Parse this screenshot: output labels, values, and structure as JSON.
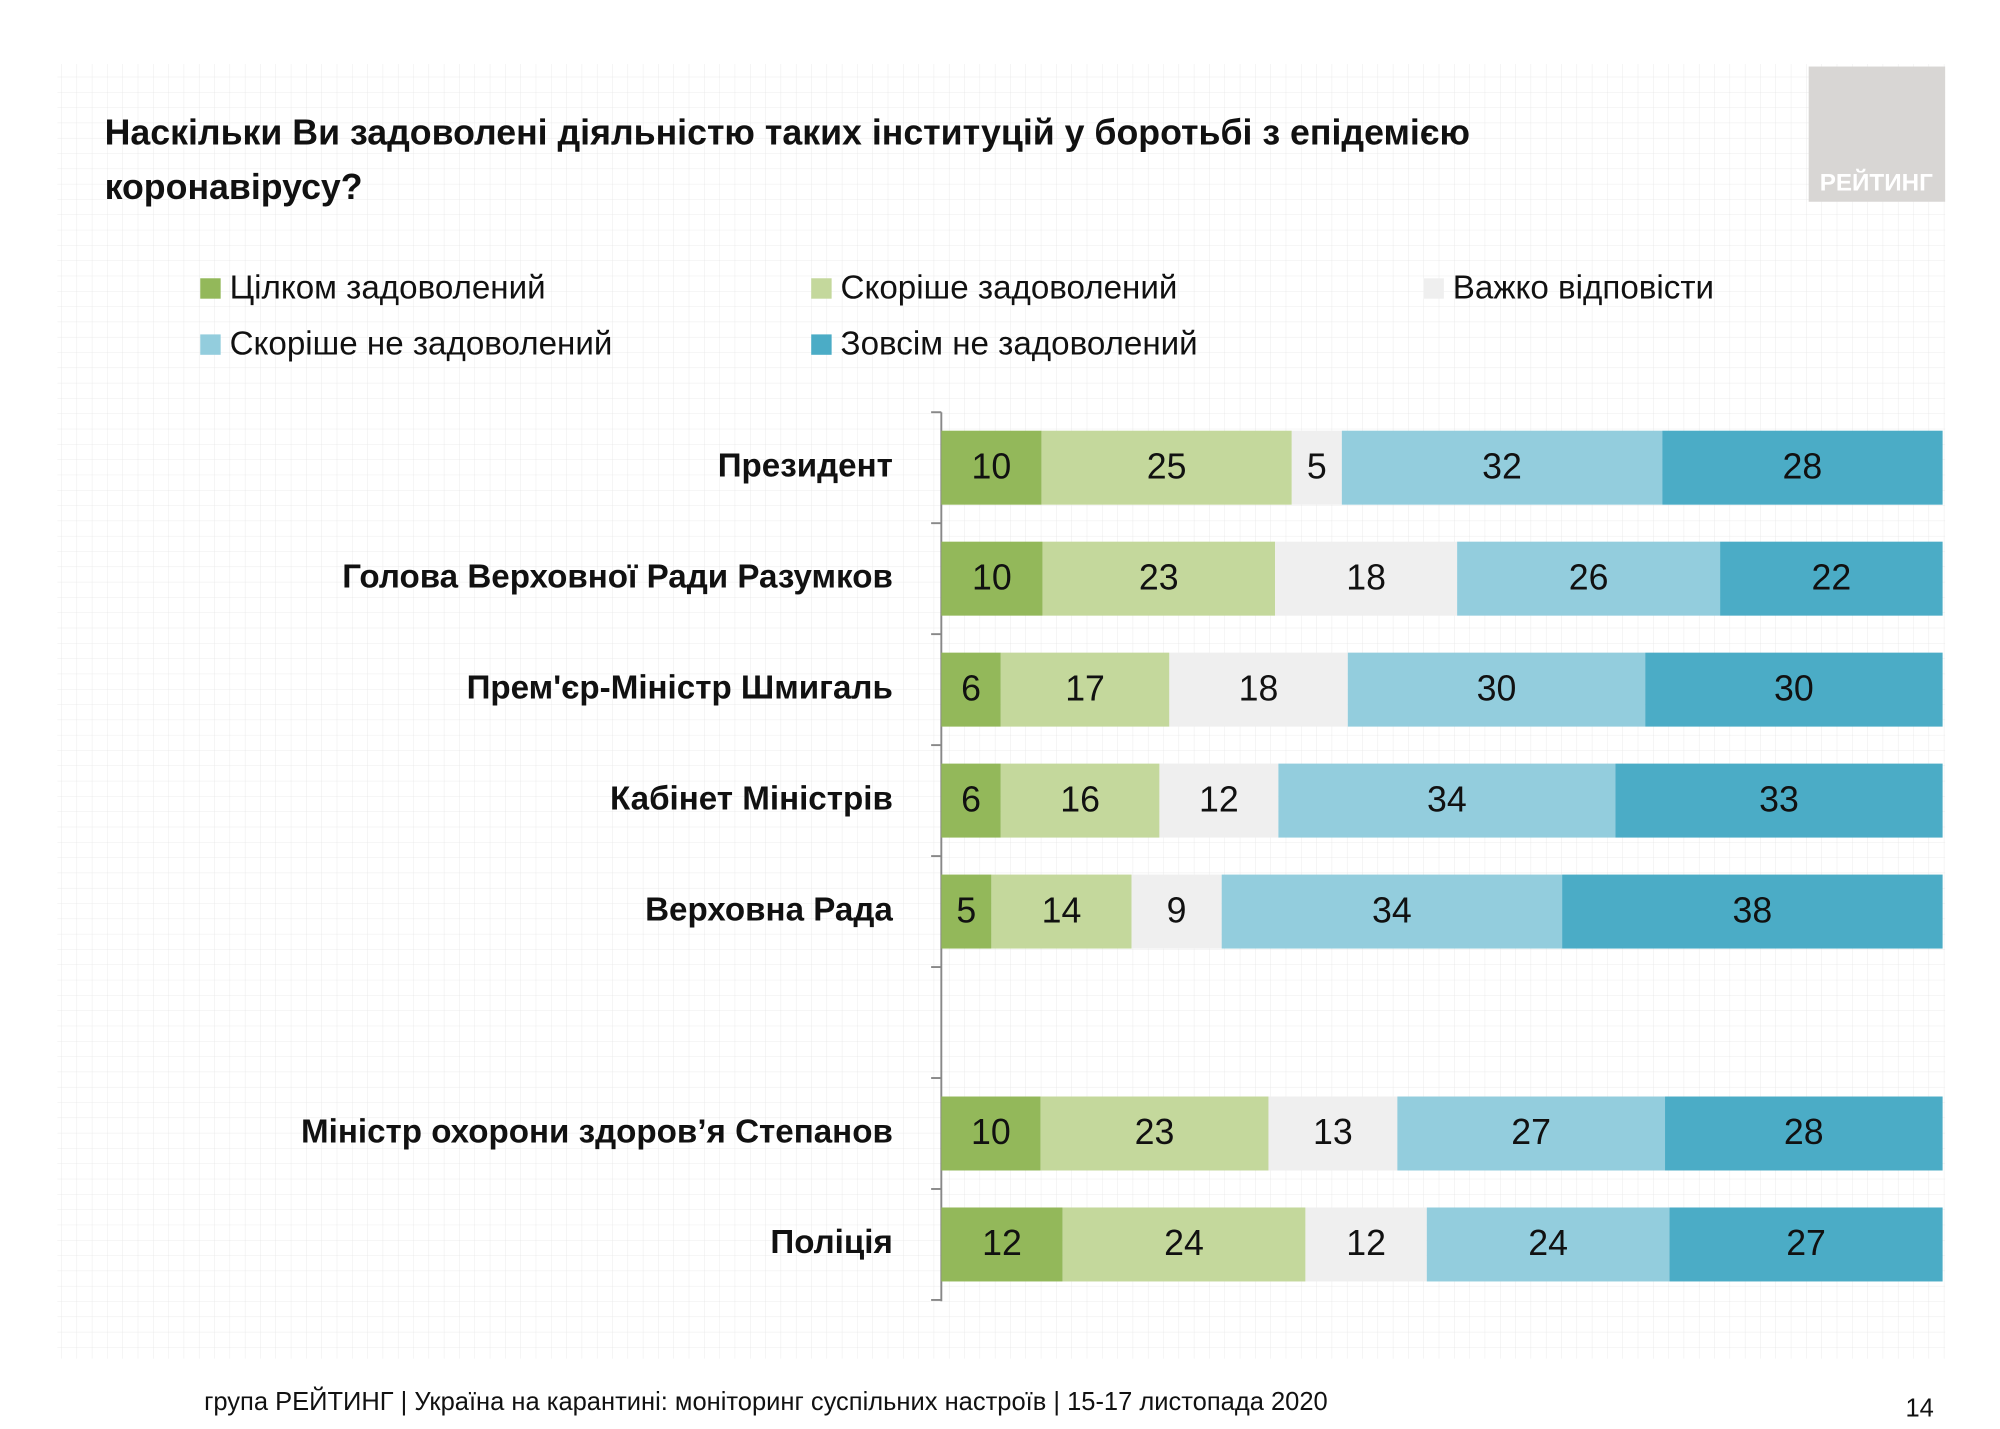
{
  "chart_data": {
    "type": "stacked_bar_100",
    "title": "Наскільки Ви задоволені діяльністю таких інституцій у боротьбі з епідемією коронавірусу?",
    "categories": [
      "Президент",
      "Голова Верховної Ради Разумков",
      "Прем'єр-Міністр Шмигаль",
      "Кабінет Міністрів",
      "Верховна Рада",
      null,
      "Міністр охорони здоров’я Степанов",
      "Поліція"
    ],
    "series": [
      {
        "name": "Цілком задоволений",
        "color": "#93b85a",
        "values": [
          10,
          10,
          6,
          6,
          5,
          null,
          10,
          12
        ]
      },
      {
        "name": "Скоріше задоволений",
        "color": "#c4d89c",
        "values": [
          25,
          23,
          17,
          16,
          14,
          null,
          23,
          24
        ]
      },
      {
        "name": "Важко відповісти",
        "color": "#efefef",
        "values": [
          5,
          18,
          18,
          12,
          9,
          null,
          13,
          12
        ]
      },
      {
        "name": "Скоріше не задоволений",
        "color": "#93cddd",
        "values": [
          32,
          26,
          30,
          34,
          34,
          null,
          27,
          24
        ]
      },
      {
        "name": "Зовсім не задоволений",
        "color": "#4bacc6",
        "values": [
          28,
          22,
          30,
          33,
          38,
          null,
          28,
          27
        ]
      }
    ]
  },
  "logo": "РЕЙТИНГ",
  "footer": "група РЕЙТИНГ | Україна на карантині: моніторинг суспільних настроїв | 15-17 листопада 2020",
  "page_number": "14"
}
